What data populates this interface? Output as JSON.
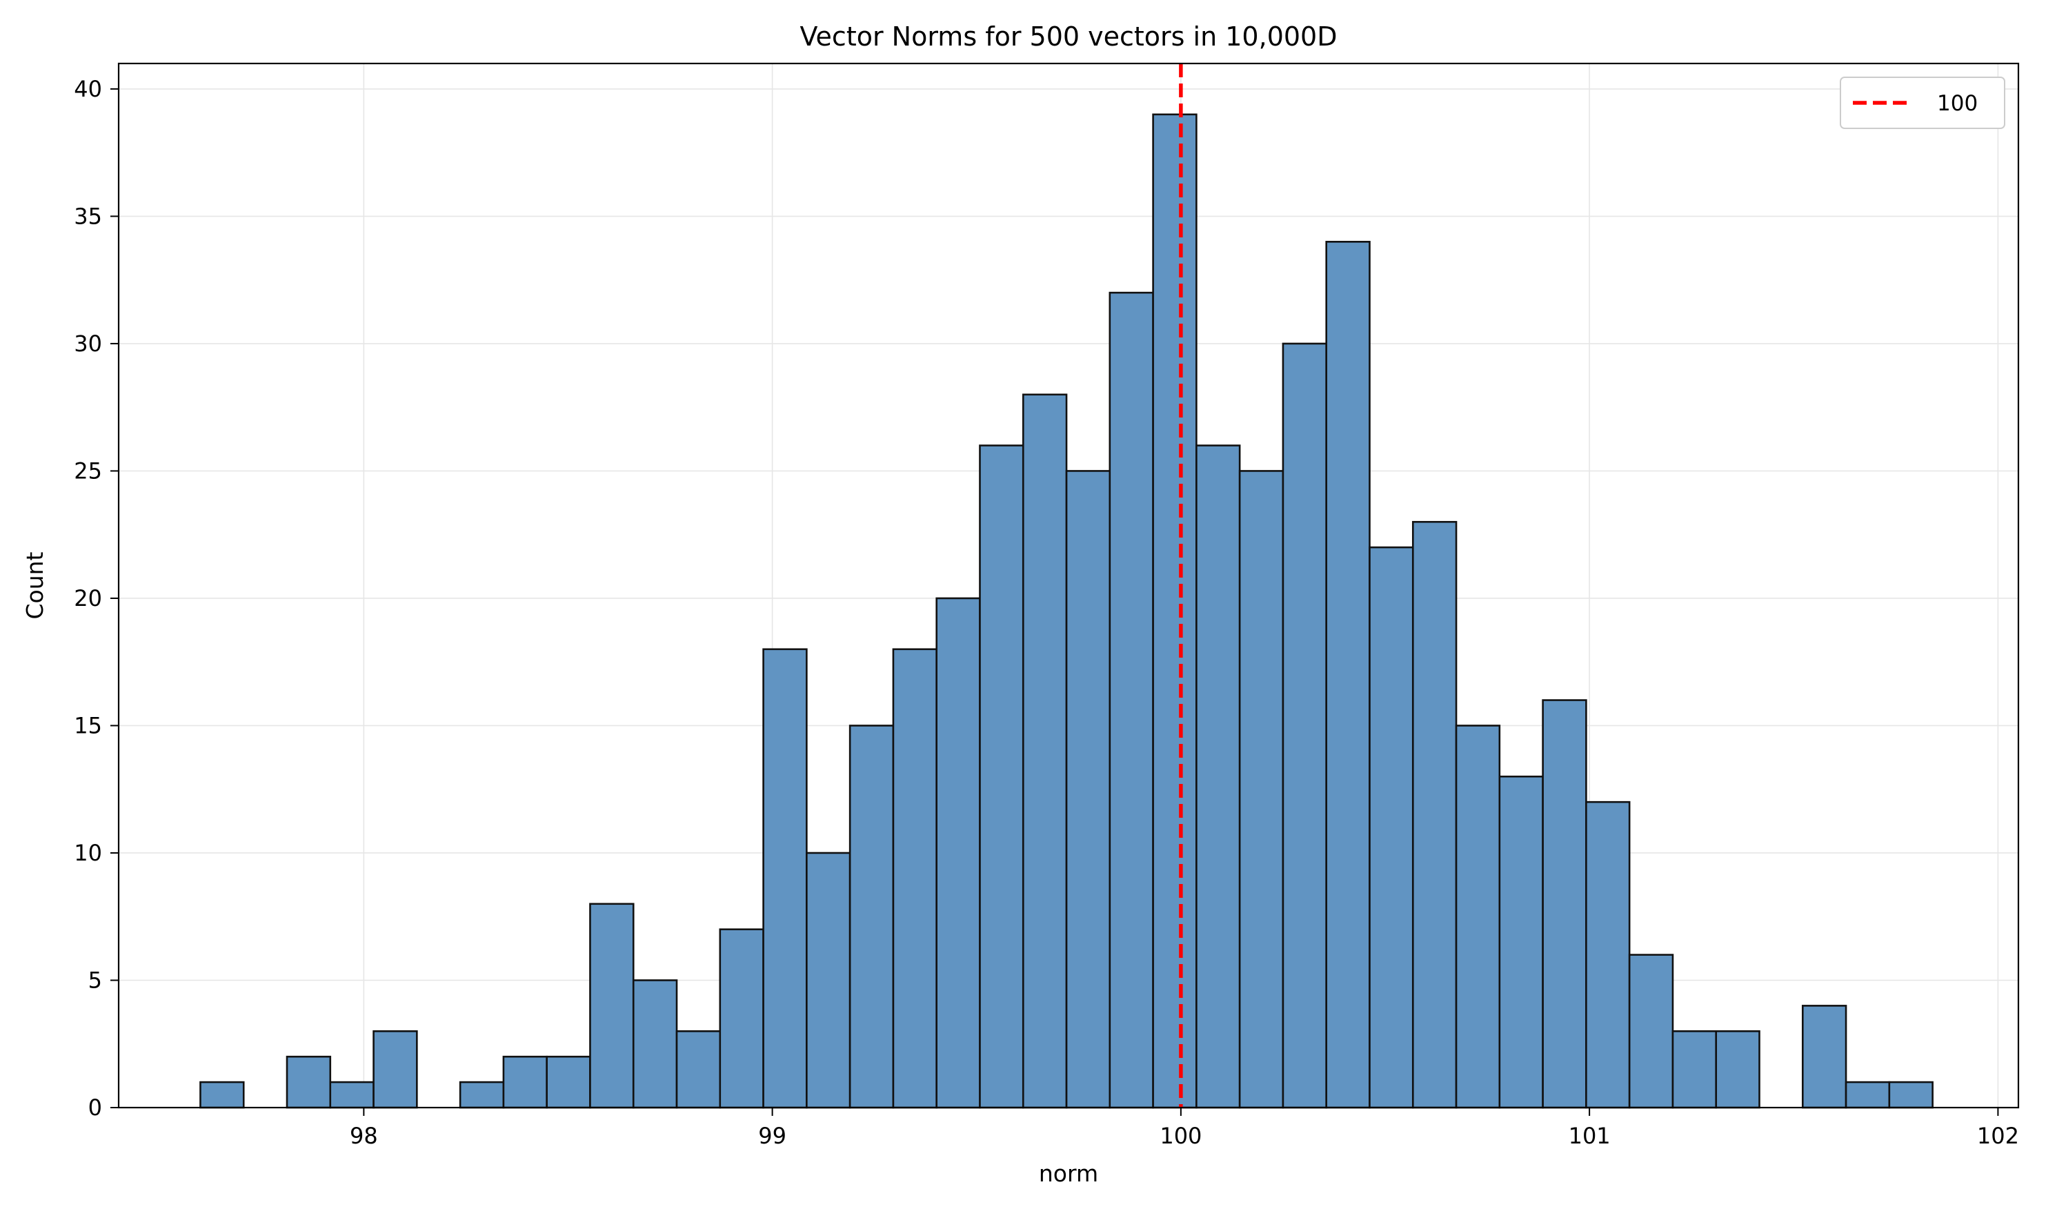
{
  "chart_data": {
    "type": "bar",
    "title": "Vector Norms for 500 vectors in 10,000D",
    "xlabel": "norm",
    "ylabel": "Count",
    "xlim": [
      97.4,
      102.05
    ],
    "ylim": [
      0,
      41
    ],
    "xticks": [
      98,
      99,
      100,
      101,
      102
    ],
    "yticks": [
      0,
      5,
      10,
      15,
      20,
      25,
      30,
      35,
      40
    ],
    "grid": true,
    "bins": {
      "start": 97.6,
      "width": 0.106,
      "counts": [
        1,
        0,
        2,
        1,
        3,
        0,
        1,
        2,
        2,
        8,
        5,
        3,
        7,
        18,
        10,
        15,
        18,
        20,
        26,
        28,
        25,
        32,
        39,
        26,
        25,
        30,
        34,
        22,
        23,
        15,
        13,
        16,
        12,
        6,
        3,
        3,
        0,
        4,
        1,
        1
      ]
    },
    "reference_line": {
      "x": 100,
      "label": "100",
      "style": "dashed"
    },
    "legend": {
      "placement": "top-right",
      "entries": [
        "100"
      ]
    },
    "colors": {
      "bar_fill": "#6194c2",
      "bar_edge": "#111111",
      "reference_line": "#ff0000",
      "grid": "#e6e6e6"
    }
  }
}
